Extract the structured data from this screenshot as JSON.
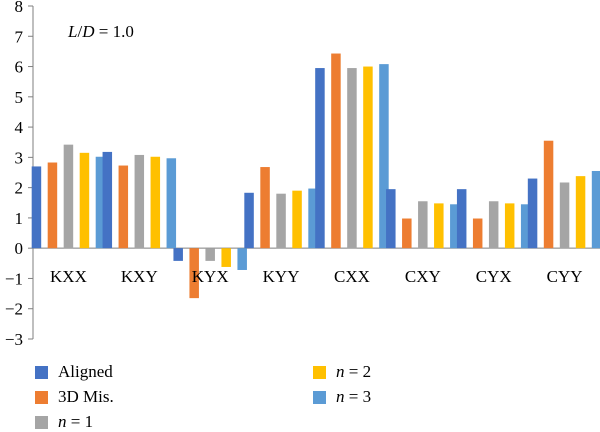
{
  "chart_data": {
    "type": "bar",
    "annotation": "L/D = 1.0",
    "annotation_parts": {
      "l": "L",
      "slash": "/",
      "d": "D",
      "rest": " = 1.0"
    },
    "categories": [
      "KXX",
      "KXY",
      "KYX",
      "KYY",
      "CXX",
      "CXY",
      "CYX",
      "CYY"
    ],
    "ylim": [
      -3,
      8
    ],
    "yticks": [
      8,
      7,
      6,
      5,
      4,
      3,
      2,
      1,
      0,
      -1,
      -2,
      -3
    ],
    "ytick_labels": [
      "8",
      "7",
      "6",
      "5",
      "4",
      "3",
      "2",
      "1",
      "0",
      "−1",
      "−2",
      "−3"
    ],
    "grid": false,
    "legend_position": "bottom",
    "series": [
      {
        "name": "Aligned",
        "color": "#4472C4",
        "values": [
          2.7,
          3.18,
          -0.42,
          1.83,
          5.95,
          1.95,
          1.95,
          2.3
        ]
      },
      {
        "name": "3D Mis.",
        "color": "#ED7D31",
        "values": [
          2.83,
          2.73,
          -1.65,
          2.68,
          6.43,
          0.98,
          0.98,
          3.55
        ]
      },
      {
        "name": "n = 1",
        "name_parts": {
          "var": "n",
          "rest": " = 1"
        },
        "color": "#A5A5A5",
        "values": [
          3.42,
          3.08,
          -0.42,
          1.8,
          5.95,
          1.55,
          1.55,
          2.17
        ]
      },
      {
        "name": "n = 2",
        "name_parts": {
          "var": "n",
          "rest": " = 2"
        },
        "color": "#FFC000",
        "values": [
          3.15,
          3.02,
          -0.62,
          1.9,
          6.0,
          1.48,
          1.48,
          2.38
        ]
      },
      {
        "name": "n = 3",
        "name_parts": {
          "var": "n",
          "rest": " = 3"
        },
        "color": "#5B9BD5",
        "values": [
          3.02,
          2.97,
          -0.72,
          1.97,
          6.08,
          1.45,
          1.45,
          2.55
        ]
      }
    ]
  }
}
